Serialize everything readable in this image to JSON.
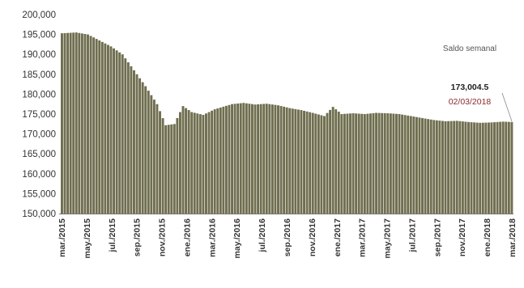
{
  "chart_data": {
    "type": "bar",
    "title": "",
    "xlabel": "",
    "ylabel": "",
    "ylim": [
      150000,
      200000
    ],
    "bar_color": "#6f6e4f",
    "bar_edge_color": "#4a4a33",
    "yticks": [
      "150,000",
      "155,000",
      "160,000",
      "165,000",
      "170,000",
      "175,000",
      "180,000",
      "185,000",
      "190,000",
      "195,000",
      "200,000"
    ],
    "ytick_values": [
      150000,
      155000,
      160000,
      165000,
      170000,
      175000,
      180000,
      185000,
      190000,
      195000,
      200000
    ],
    "xtick_labels": [
      "mar./2015",
      "may./2015",
      "jul./2015",
      "sep./2015",
      "nov./2015",
      "ene./2016",
      "mar./2016",
      "may./2016",
      "jul./2016",
      "sep./2016",
      "nov./2016",
      "ene./2017",
      "mar./2017",
      "may./2017",
      "jul./2017",
      "sep./2017",
      "nov./2017",
      "ene./2018",
      "mar./2018"
    ],
    "keypoints": [
      {
        "date": "2015-03-06",
        "value": 195300
      },
      {
        "date": "2015-04-10",
        "value": 195500
      },
      {
        "date": "2015-05-08",
        "value": 195000
      },
      {
        "date": "2015-06-05",
        "value": 193500
      },
      {
        "date": "2015-07-03",
        "value": 192000
      },
      {
        "date": "2015-07-31",
        "value": 190000
      },
      {
        "date": "2015-08-28",
        "value": 186000
      },
      {
        "date": "2015-09-25",
        "value": 182000
      },
      {
        "date": "2015-10-23",
        "value": 177500
      },
      {
        "date": "2015-11-13",
        "value": 172200
      },
      {
        "date": "2015-12-04",
        "value": 172500
      },
      {
        "date": "2015-12-25",
        "value": 177000
      },
      {
        "date": "2016-01-15",
        "value": 175500
      },
      {
        "date": "2016-02-12",
        "value": 174800
      },
      {
        "date": "2016-03-11",
        "value": 176200
      },
      {
        "date": "2016-04-22",
        "value": 177500
      },
      {
        "date": "2016-05-20",
        "value": 177800
      },
      {
        "date": "2016-06-17",
        "value": 177400
      },
      {
        "date": "2016-07-15",
        "value": 177600
      },
      {
        "date": "2016-08-12",
        "value": 177200
      },
      {
        "date": "2016-09-09",
        "value": 176500
      },
      {
        "date": "2016-10-07",
        "value": 176000
      },
      {
        "date": "2016-11-04",
        "value": 175300
      },
      {
        "date": "2016-12-02",
        "value": 174500
      },
      {
        "date": "2016-12-23",
        "value": 176800
      },
      {
        "date": "2017-01-13",
        "value": 175000
      },
      {
        "date": "2017-02-10",
        "value": 175200
      },
      {
        "date": "2017-03-10",
        "value": 175000
      },
      {
        "date": "2017-04-07",
        "value": 175300
      },
      {
        "date": "2017-05-05",
        "value": 175200
      },
      {
        "date": "2017-06-02",
        "value": 175000
      },
      {
        "date": "2017-06-30",
        "value": 174500
      },
      {
        "date": "2017-07-28",
        "value": 174000
      },
      {
        "date": "2017-08-25",
        "value": 173500
      },
      {
        "date": "2017-09-22",
        "value": 173200
      },
      {
        "date": "2017-10-20",
        "value": 173300
      },
      {
        "date": "2017-11-17",
        "value": 173000
      },
      {
        "date": "2017-12-15",
        "value": 172800
      },
      {
        "date": "2018-01-12",
        "value": 172900
      },
      {
        "date": "2018-02-09",
        "value": 173100
      },
      {
        "date": "2018-03-02",
        "value": 173004.5
      }
    ],
    "annotations": {
      "title": "Saldo semanal",
      "value": "173,004.5",
      "date": "02/03/2018"
    },
    "grid": false,
    "legend": "none"
  }
}
